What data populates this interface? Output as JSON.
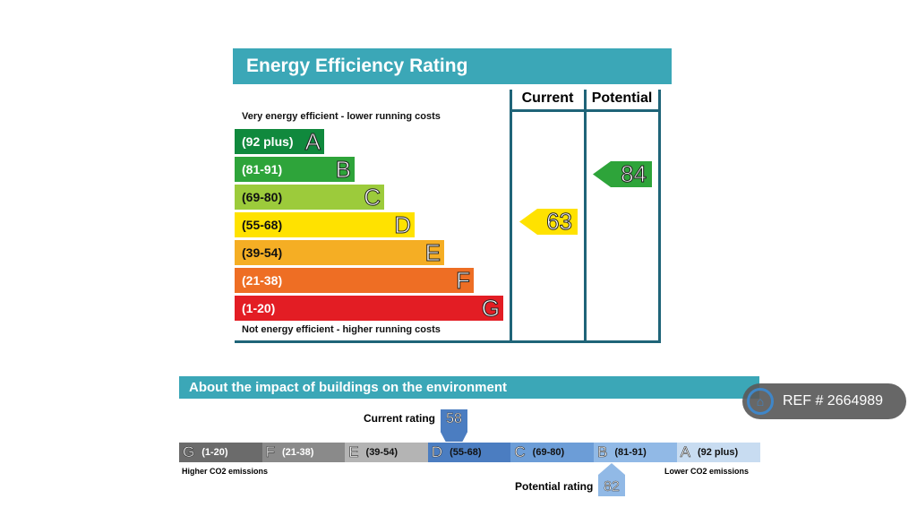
{
  "energy_rating": {
    "title": "Energy Efficiency Rating",
    "col_current": "Current",
    "col_potential": "Potential",
    "top_note": "Very energy efficient - lower running costs",
    "bottom_note": "Not energy efficient - higher running costs",
    "bands": [
      {
        "range": "(92 plus)",
        "letter": "A",
        "color": "#10893d"
      },
      {
        "range": "(81-91)",
        "letter": "B",
        "color": "#2ea43a"
      },
      {
        "range": "(69-80)",
        "letter": "C",
        "color": "#9ccb3b"
      },
      {
        "range": "(55-68)",
        "letter": "D",
        "color": "#ffe200"
      },
      {
        "range": "(39-54)",
        "letter": "E",
        "color": "#f5ae24"
      },
      {
        "range": "(21-38)",
        "letter": "F",
        "color": "#ee6e24"
      },
      {
        "range": "(1-20)",
        "letter": "G",
        "color": "#e31d24"
      }
    ],
    "current": "63",
    "potential": "84"
  },
  "environment": {
    "title": "About the impact of buildings on the environment",
    "current_label": "Current rating",
    "current": "58",
    "potential_label": "Potential rating",
    "potential": "82",
    "higher": "Higher CO2 emissions",
    "lower": "Lower CO2 emissions",
    "bands": [
      {
        "letter": "G",
        "range": "(1-20)",
        "color": "#6b6b6b"
      },
      {
        "letter": "F",
        "range": "(21-38)",
        "color": "#8a8a8a"
      },
      {
        "letter": "E",
        "range": "(39-54)",
        "color": "#b4b4b4"
      },
      {
        "letter": "D",
        "range": "(55-68)",
        "color": "#4b7dc1"
      },
      {
        "letter": "C",
        "range": "(69-80)",
        "color": "#6c9dd7"
      },
      {
        "letter": "B",
        "range": "(81-91)",
        "color": "#91b9e6"
      },
      {
        "letter": "A",
        "range": "(92 plus)",
        "color": "#c8dcf1"
      }
    ]
  },
  "badge": {
    "text": "REF # 2664989",
    "icon": "home-icon"
  }
}
